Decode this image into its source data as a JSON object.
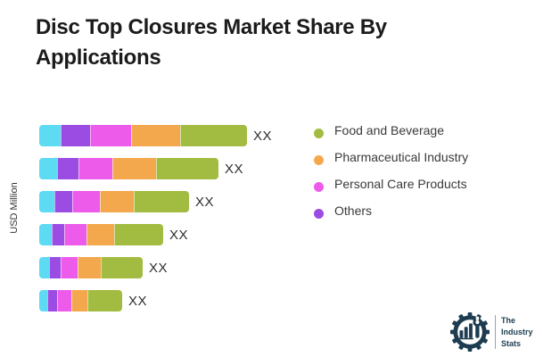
{
  "title": "Disc Top Closures Market Share By Applications",
  "y_axis_label": "USD Million",
  "chart_data": {
    "type": "bar",
    "orientation": "horizontal",
    "stacked": true,
    "title": "Disc Top Closures Market Share By Applications",
    "ylabel": "USD Million",
    "grid": false,
    "legend_position": "right",
    "values_masked": true,
    "bar_value_labels": [
      "XX",
      "XX",
      "XX",
      "XX",
      "XX",
      "XX"
    ],
    "units": "relative segment widths in px (numeric values shown only as XX)",
    "series": [
      {
        "name": "",
        "color": "#5cdbf2",
        "values": [
          24,
          20,
          17,
          14,
          11,
          9
        ]
      },
      {
        "name": "Others",
        "color": "#9b4ce3",
        "values": [
          33,
          24,
          20,
          14,
          13,
          11
        ]
      },
      {
        "name": "Personal Care Products",
        "color": "#ec5bea",
        "values": [
          46,
          38,
          31,
          25,
          19,
          16
        ]
      },
      {
        "name": "Pharmaceutical Industry",
        "color": "#f3a84e",
        "values": [
          55,
          49,
          38,
          31,
          26,
          18
        ]
      },
      {
        "name": "Food and Beverage",
        "color": "#a2bc41",
        "values": [
          75,
          70,
          62,
          55,
          47,
          39
        ]
      }
    ]
  },
  "legend": [
    {
      "label": "Food and Beverage",
      "color": "#a2bc41"
    },
    {
      "label": "Pharmaceutical Industry",
      "color": "#f3a84e"
    },
    {
      "label": "Personal Care Products",
      "color": "#ec5bea"
    },
    {
      "label": "Others",
      "color": "#9b4ce3"
    }
  ],
  "logo": {
    "lines": [
      "The",
      "Industry",
      "Stats"
    ],
    "color": "#1d3c50"
  }
}
